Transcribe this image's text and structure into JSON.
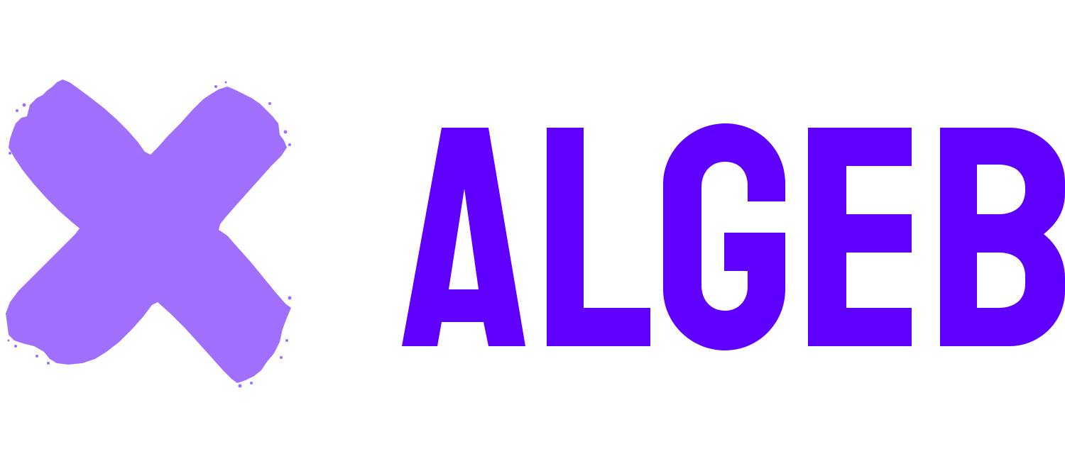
{
  "logo": {
    "wordmark": "ALGEB",
    "mark_icon": "brush-x-icon",
    "colors": {
      "mark": "#a06ffc",
      "wordmark": "#5f00ff",
      "background": "#ffffff"
    }
  }
}
